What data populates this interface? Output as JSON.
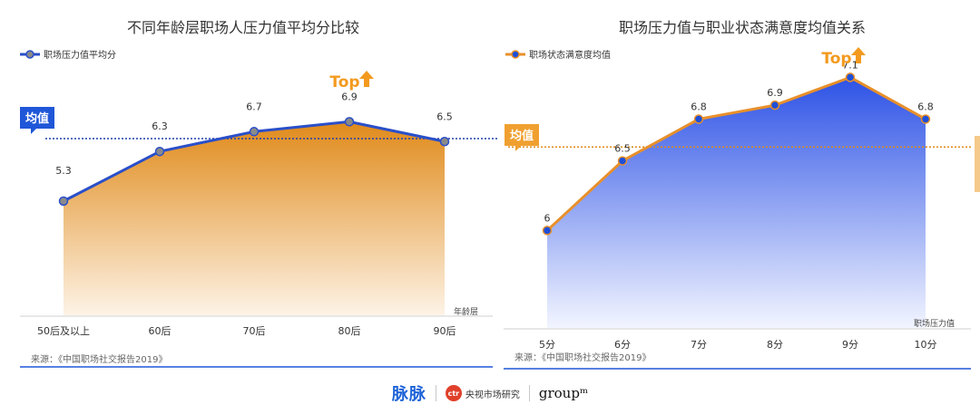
{
  "chart_data": [
    {
      "type": "area",
      "title": "不同年龄层职场人压力值平均分比较",
      "legend": "职场压力值平均分",
      "legend_position": "top-left",
      "x_label": "年龄层",
      "categories": [
        "50后及以上",
        "60后",
        "70后",
        "80后",
        "90后"
      ],
      "values": [
        5.3,
        6.3,
        6.7,
        6.9,
        6.5
      ],
      "value_labels": [
        "5.3",
        "6.3",
        "6.7",
        "6.9",
        "6.5"
      ],
      "ylim": [
        3.0,
        7.6
      ],
      "average_value": 6.56,
      "average_label": "均值",
      "top_label": "Top",
      "top_index": 3,
      "source": "来源：《中国职场社交报告2019》",
      "line_color": "#2a4fc9",
      "fill_color": "#e08a1a",
      "marker_color": "#8a8a8a",
      "avg_line_color": "#1f3fa8",
      "avg_badge_color": "#1f57d8"
    },
    {
      "type": "area",
      "title": "职场压力值与职业状态满意度均值关系",
      "legend": "职场状态满意度均值",
      "legend_position": "top-left",
      "x_label": "职场压力值",
      "categories": [
        "5分",
        "6分",
        "7分",
        "8分",
        "9分",
        "10分"
      ],
      "values": [
        6.0,
        6.5,
        6.8,
        6.9,
        7.1,
        6.8
      ],
      "value_labels": [
        "6",
        "6.5",
        "6.8",
        "6.9",
        "7.1",
        "6.8"
      ],
      "ylim": [
        5.3,
        7.2
      ],
      "average_value": 6.6,
      "average_label": "均值",
      "top_label": "Top",
      "top_index": 4,
      "source": "来源：《中国职场社交报告2019》",
      "line_color": "#e8902a",
      "fill_color": "#2d52e6",
      "marker_color": "#1f4fd8",
      "avg_line_color": "#e08a1a",
      "avg_badge_color": "#f0a030"
    }
  ],
  "footer": {
    "maimai": "脉脉",
    "ctr_badge": "ctr",
    "ctr_name": "央视市场研究",
    "groupm": "groupᵐ"
  }
}
